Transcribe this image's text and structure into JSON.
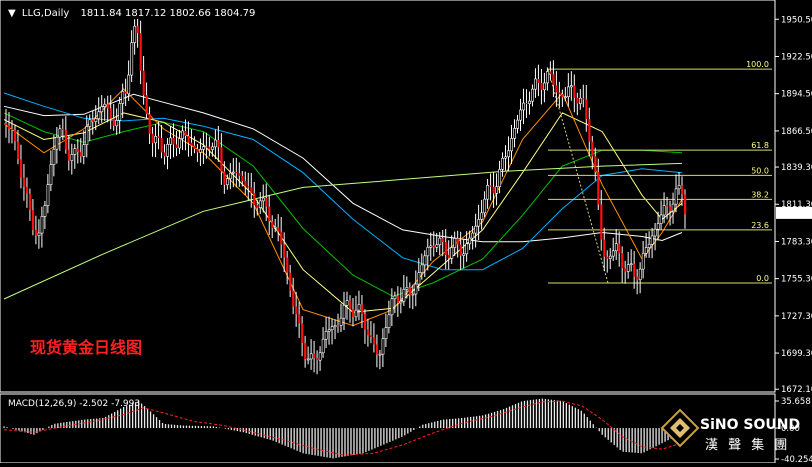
{
  "main_chart": {
    "header": {
      "symbol_timeframe": "LLG,Daily",
      "ohlc": "1811.84 1817.12 1802.66 1804.79"
    },
    "price_axis": {
      "ticks": [
        "1950.50",
        "1922.50",
        "1894.50",
        "1866.50",
        "1839.30",
        "1811.30",
        "1783.30",
        "1755.30",
        "1727.30",
        "1699.30",
        "1672.10"
      ]
    },
    "current_price": "1804.79",
    "fibonacci": {
      "levels": [
        "100.0",
        "61.8",
        "50.0",
        "38.2",
        "23.6",
        "0.0"
      ]
    },
    "caption": "现货黄金日线图"
  },
  "macd_panel": {
    "header": "MACD(12,26,9) -2.502 -7.993",
    "axis_ticks": [
      "35.658",
      "0.00",
      "-40.254"
    ]
  },
  "watermark": {
    "latin": "SiNO SOUND",
    "chinese": "漢 聲 集 團"
  },
  "chart_data": [
    {
      "type": "candlestick",
      "title": "",
      "ylim": [
        1670,
        1965
      ],
      "price_ticks": [
        1950.5,
        1922.5,
        1894.5,
        1866.5,
        1839.3,
        1811.3,
        1783.3,
        1755.3,
        1727.3,
        1699.3,
        1672.1
      ],
      "last": {
        "open": 1811.84,
        "high": 1817.12,
        "low": 1802.66,
        "close": 1804.79
      },
      "fibonacci": [
        {
          "level": "100.0",
          "price": 1913
        },
        {
          "level": "61.8",
          "price": 1852
        },
        {
          "level": "50.0",
          "price": 1833
        },
        {
          "level": "38.2",
          "price": 1815
        },
        {
          "level": "23.6",
          "price": 1792
        },
        {
          "level": "0.0",
          "price": 1752
        }
      ],
      "close_path": [
        [
          0,
          1872
        ],
        [
          8,
          1865
        ],
        [
          15,
          1845
        ],
        [
          22,
          1815
        ],
        [
          28,
          1800
        ],
        [
          35,
          1786
        ],
        [
          40,
          1805
        ],
        [
          45,
          1835
        ],
        [
          52,
          1860
        ],
        [
          58,
          1868
        ],
        [
          64,
          1850
        ],
        [
          70,
          1845
        ],
        [
          78,
          1855
        ],
        [
          85,
          1870
        ],
        [
          92,
          1878
        ],
        [
          100,
          1888
        ],
        [
          108,
          1872
        ],
        [
          115,
          1882
        ],
        [
          122,
          1895
        ],
        [
          128,
          1935
        ],
        [
          133,
          1945
        ],
        [
          138,
          1905
        ],
        [
          143,
          1880
        ],
        [
          148,
          1856
        ],
        [
          155,
          1860
        ],
        [
          162,
          1850
        ],
        [
          170,
          1858
        ],
        [
          178,
          1863
        ],
        [
          186,
          1858
        ],
        [
          194,
          1852
        ],
        [
          200,
          1850
        ],
        [
          207,
          1860
        ],
        [
          214,
          1852
        ],
        [
          220,
          1832
        ],
        [
          226,
          1830
        ],
        [
          232,
          1836
        ],
        [
          238,
          1832
        ],
        [
          244,
          1824
        ],
        [
          250,
          1810
        ],
        [
          256,
          1818
        ],
        [
          262,
          1806
        ],
        [
          268,
          1800
        ],
        [
          274,
          1790
        ],
        [
          280,
          1775
        ],
        [
          286,
          1753
        ],
        [
          292,
          1728
        ],
        [
          298,
          1711
        ],
        [
          304,
          1697
        ],
        [
          310,
          1690
        ],
        [
          316,
          1702
        ],
        [
          322,
          1712
        ],
        [
          328,
          1718
        ],
        [
          334,
          1722
        ],
        [
          340,
          1730
        ],
        [
          346,
          1736
        ],
        [
          352,
          1732
        ],
        [
          358,
          1728
        ],
        [
          364,
          1718
        ],
        [
          370,
          1706
        ],
        [
          376,
          1693
        ],
        [
          382,
          1720
        ],
        [
          388,
          1734
        ],
        [
          394,
          1740
        ],
        [
          400,
          1747
        ],
        [
          406,
          1740
        ],
        [
          412,
          1752
        ],
        [
          418,
          1762
        ],
        [
          424,
          1776
        ],
        [
          430,
          1784
        ],
        [
          436,
          1780
        ],
        [
          442,
          1779
        ],
        [
          448,
          1775
        ],
        [
          454,
          1782
        ],
        [
          460,
          1774
        ],
        [
          466,
          1784
        ],
        [
          472,
          1790
        ],
        [
          478,
          1808
        ],
        [
          484,
          1818
        ],
        [
          490,
          1824
        ],
        [
          496,
          1832
        ],
        [
          502,
          1845
        ],
        [
          508,
          1860
        ],
        [
          514,
          1872
        ],
        [
          520,
          1884
        ],
        [
          526,
          1893
        ],
        [
          532,
          1898
        ],
        [
          538,
          1903
        ],
        [
          544,
          1908
        ],
        [
          550,
          1903
        ],
        [
          556,
          1896
        ],
        [
          562,
          1890
        ],
        [
          568,
          1900
        ],
        [
          574,
          1893
        ],
        [
          580,
          1886
        ],
        [
          586,
          1870
        ],
        [
          590,
          1850
        ],
        [
          594,
          1825
        ],
        [
          598,
          1790
        ],
        [
          603,
          1770
        ],
        [
          608,
          1773
        ],
        [
          614,
          1778
        ],
        [
          620,
          1768
        ],
        [
          626,
          1762
        ],
        [
          632,
          1758
        ],
        [
          638,
          1764
        ],
        [
          644,
          1776
        ],
        [
          650,
          1789
        ],
        [
          656,
          1798
        ],
        [
          662,
          1806
        ],
        [
          668,
          1812
        ],
        [
          674,
          1818
        ],
        [
          680,
          1821
        ],
        [
          684,
          1806
        ]
      ],
      "moving_averages": [
        {
          "color": "#ffffff",
          "path": [
            [
              0,
              1885
            ],
            [
              40,
              1878
            ],
            [
              80,
              1879
            ],
            [
              130,
              1894
            ],
            [
              160,
              1888
            ],
            [
              200,
              1880
            ],
            [
              250,
              1868
            ],
            [
              300,
              1846
            ],
            [
              350,
              1812
            ],
            [
              400,
              1792
            ],
            [
              440,
              1787
            ],
            [
              480,
              1783
            ],
            [
              520,
              1783
            ],
            [
              560,
              1786
            ],
            [
              600,
              1790
            ],
            [
              640,
              1787
            ],
            [
              660,
              1784
            ],
            [
              680,
              1790
            ]
          ]
        },
        {
          "color": "#00b0ff",
          "path": [
            [
              0,
              1895
            ],
            [
              40,
              1885
            ],
            [
              80,
              1876
            ],
            [
              120,
              1874
            ],
            [
              160,
              1876
            ],
            [
              200,
              1870
            ],
            [
              250,
              1860
            ],
            [
              300,
              1835
            ],
            [
              350,
              1800
            ],
            [
              400,
              1771
            ],
            [
              440,
              1762
            ],
            [
              480,
              1762
            ],
            [
              520,
              1778
            ],
            [
              560,
              1808
            ],
            [
              600,
              1833
            ],
            [
              640,
              1838
            ],
            [
              680,
              1835
            ]
          ]
        },
        {
          "color": "#00c000",
          "path": [
            [
              0,
              1880
            ],
            [
              40,
              1866
            ],
            [
              80,
              1858
            ],
            [
              120,
              1866
            ],
            [
              160,
              1873
            ],
            [
              200,
              1866
            ],
            [
              250,
              1840
            ],
            [
              300,
              1793
            ],
            [
              350,
              1758
            ],
            [
              390,
              1742
            ],
            [
              430,
              1752
            ],
            [
              480,
              1770
            ],
            [
              520,
              1803
            ],
            [
              560,
              1840
            ],
            [
              600,
              1852
            ],
            [
              640,
              1852
            ],
            [
              680,
              1850
            ]
          ]
        },
        {
          "color": "#ffff80",
          "path": [
            [
              0,
              1875
            ],
            [
              40,
              1860
            ],
            [
              80,
              1865
            ],
            [
              120,
              1880
            ],
            [
              160,
              1873
            ],
            [
              200,
              1856
            ],
            [
              250,
              1818
            ],
            [
              300,
              1762
            ],
            [
              350,
              1730
            ],
            [
              390,
              1733
            ],
            [
              430,
              1759
            ],
            [
              480,
              1792
            ],
            [
              520,
              1835
            ],
            [
              560,
              1880
            ],
            [
              600,
              1866
            ],
            [
              640,
              1818
            ],
            [
              660,
              1800
            ],
            [
              680,
              1812
            ]
          ]
        },
        {
          "color": "#ff9000",
          "path": [
            [
              0,
              1872
            ],
            [
              40,
              1850
            ],
            [
              80,
              1868
            ],
            [
              120,
              1898
            ],
            [
              160,
              1868
            ],
            [
              200,
              1850
            ],
            [
              250,
              1812
            ],
            [
              300,
              1732
            ],
            [
              350,
              1720
            ],
            [
              390,
              1732
            ],
            [
              430,
              1768
            ],
            [
              480,
              1798
            ],
            [
              520,
              1860
            ],
            [
              560,
              1895
            ],
            [
              600,
              1826
            ],
            [
              640,
              1770
            ],
            [
              660,
              1790
            ],
            [
              680,
              1815
            ]
          ]
        },
        {
          "color": "#c0ff80",
          "path": [
            [
              0,
              1740
            ],
            [
              100,
              1774
            ],
            [
              200,
              1806
            ],
            [
              300,
              1824
            ],
            [
              400,
              1830
            ],
            [
              500,
              1836
            ],
            [
              600,
              1840
            ],
            [
              680,
              1842
            ]
          ]
        }
      ]
    },
    {
      "type": "bar",
      "title": "MACD(12,26,9)",
      "ylim": [
        -40.254,
        35.658
      ],
      "values": {
        "macd": -2.502,
        "signal": -7.993
      },
      "histogram_path": [
        [
          0,
          2
        ],
        [
          30,
          -8
        ],
        [
          50,
          5
        ],
        [
          80,
          10
        ],
        [
          100,
          12
        ],
        [
          120,
          25
        ],
        [
          135,
          32
        ],
        [
          145,
          22
        ],
        [
          160,
          5
        ],
        [
          180,
          3
        ],
        [
          210,
          2
        ],
        [
          240,
          -5
        ],
        [
          270,
          -15
        ],
        [
          300,
          -30
        ],
        [
          330,
          -36
        ],
        [
          360,
          -30
        ],
        [
          380,
          -20
        ],
        [
          400,
          -10
        ],
        [
          420,
          4
        ],
        [
          440,
          10
        ],
        [
          460,
          12
        ],
        [
          480,
          15
        ],
        [
          500,
          22
        ],
        [
          520,
          32
        ],
        [
          540,
          35
        ],
        [
          560,
          32
        ],
        [
          580,
          20
        ],
        [
          600,
          -8
        ],
        [
          620,
          -28
        ],
        [
          640,
          -30
        ],
        [
          660,
          -18
        ],
        [
          680,
          -6
        ]
      ],
      "signal_path": [
        [
          0,
          -2
        ],
        [
          30,
          -5
        ],
        [
          60,
          2
        ],
        [
          90,
          8
        ],
        [
          120,
          16
        ],
        [
          140,
          24
        ],
        [
          160,
          18
        ],
        [
          190,
          8
        ],
        [
          220,
          3
        ],
        [
          250,
          -5
        ],
        [
          280,
          -14
        ],
        [
          310,
          -24
        ],
        [
          340,
          -32
        ],
        [
          370,
          -30
        ],
        [
          400,
          -20
        ],
        [
          430,
          -6
        ],
        [
          460,
          6
        ],
        [
          490,
          14
        ],
        [
          520,
          25
        ],
        [
          540,
          31
        ],
        [
          560,
          32
        ],
        [
          580,
          26
        ],
        [
          600,
          10
        ],
        [
          620,
          -10
        ],
        [
          640,
          -22
        ],
        [
          660,
          -25
        ],
        [
          680,
          -18
        ]
      ]
    }
  ]
}
